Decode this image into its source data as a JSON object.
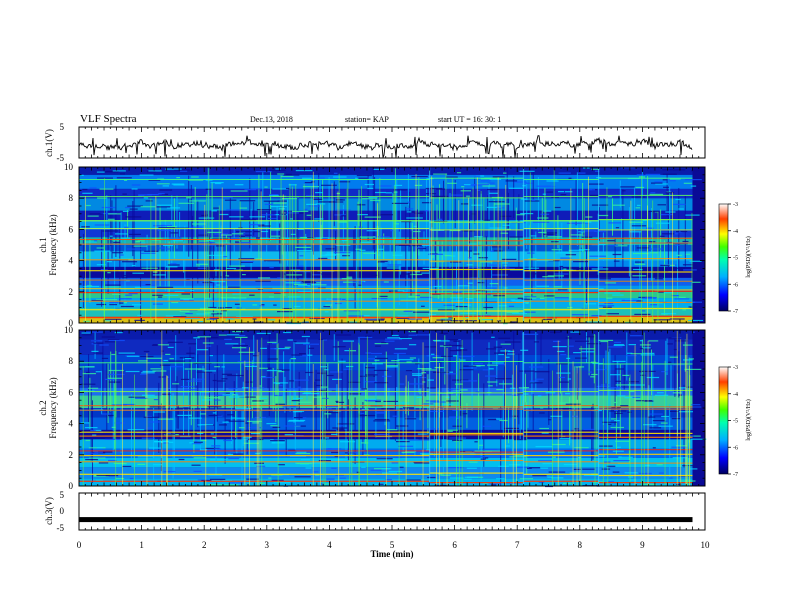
{
  "header": {
    "title": "VLF Spectra",
    "date": "Dec.13, 2018",
    "station": "station= KAP",
    "start": "start UT =   16: 30: 1"
  },
  "chart_data": [
    {
      "type": "line",
      "panel": "ch1-waveform",
      "ylabel": "ch.1(V)",
      "ylim": [
        -5,
        5
      ],
      "y_ticks": [
        "5",
        "-5"
      ],
      "x_range_min": [
        0,
        9.8
      ],
      "mean": 0,
      "range": [
        -3.5,
        1.5
      ]
    },
    {
      "type": "heatmap",
      "panel": "ch1-spectrogram",
      "channel_label": "ch.1",
      "ylabel": "Frequency (kHz)",
      "ylim": [
        0,
        10
      ],
      "y_ticks": [
        "0",
        "2",
        "4",
        "6",
        "8",
        "10"
      ],
      "x_range_min": [
        0,
        9.8
      ],
      "colorbar": {
        "label": "log(PSD)(V²/Hz)",
        "range": [
          -7,
          -3
        ],
        "ticks": [
          "-3",
          "-4",
          "-5",
          "-6",
          "-7"
        ]
      },
      "band_breaks_min": [
        5.6,
        7.1,
        8.3
      ]
    },
    {
      "type": "heatmap",
      "panel": "ch2-spectrogram",
      "channel_label": "ch.2",
      "ylabel": "Frequency (kHz)",
      "ylim": [
        0,
        10
      ],
      "y_ticks": [
        "0",
        "2",
        "4",
        "6",
        "8",
        "10"
      ],
      "x_range_min": [
        0,
        9.8
      ],
      "colorbar": {
        "label": "log(PSD)(V²/Hz)",
        "range": [
          -7,
          -3
        ],
        "ticks": [
          "-3",
          "-4",
          "-5",
          "-6",
          "-7"
        ]
      },
      "band_breaks_min": [
        5.6,
        7.1,
        8.3
      ]
    },
    {
      "type": "line",
      "panel": "ch3-waveform",
      "ylabel": "ch.3(V)",
      "ylim": [
        -5,
        5
      ],
      "y_ticks": [
        "5",
        "0",
        "-5"
      ],
      "x_range_min": [
        0,
        9.8
      ],
      "constant_value": -2.2
    }
  ],
  "xaxis": {
    "label": "Time (min)",
    "ticks": [
      "0",
      "1",
      "2",
      "3",
      "4",
      "5",
      "6",
      "7",
      "8",
      "9",
      "10"
    ],
    "range": [
      0,
      10
    ]
  },
  "colors": {
    "spectro_low": "#0a0a96",
    "spectro_mid": "#00c8ff",
    "spectro_high": "#ff0000",
    "line": "#000000"
  }
}
